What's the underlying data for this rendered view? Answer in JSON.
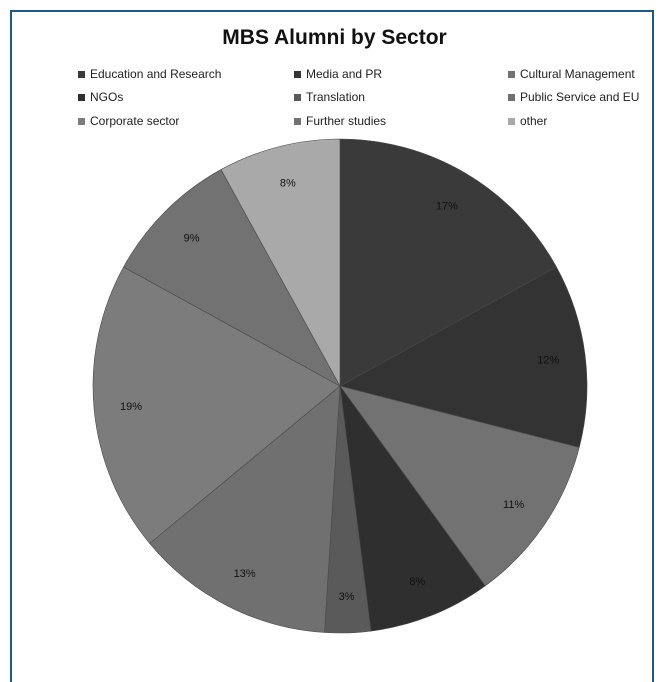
{
  "chart_data": {
    "type": "pie",
    "title": "MBS Alumni by Sector",
    "legend_position": "top",
    "slices": [
      {
        "name": "Education and Research",
        "value": 17,
        "label": "17%",
        "color": "#3a3a3a"
      },
      {
        "name": "Media and PR",
        "value": 12,
        "label": "12%",
        "color": "#333333"
      },
      {
        "name": "Cultural Management",
        "value": 11,
        "label": "11%",
        "color": "#727272"
      },
      {
        "name": "NGOs",
        "value": 8,
        "label": "8%",
        "color": "#2f2f2f"
      },
      {
        "name": "Translation",
        "value": 3,
        "label": "3%",
        "color": "#5a5a5a"
      },
      {
        "name": "Public Service and EU",
        "value": 13,
        "label": "13%",
        "color": "#707070"
      },
      {
        "name": "Corporate sector",
        "value": 19,
        "label": "19%",
        "color": "#7c7c7c"
      },
      {
        "name": "Further studies",
        "value": 9,
        "label": "9%",
        "color": "#727272"
      },
      {
        "name": "other",
        "value": 8,
        "label": "8%",
        "color": "#a9a9a9"
      }
    ]
  }
}
